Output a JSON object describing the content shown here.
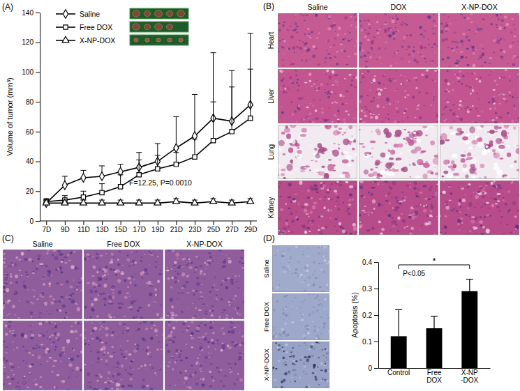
{
  "figure": {
    "panel_labels": [
      "(A)",
      "(B)",
      "(C)",
      "(D)"
    ],
    "organ_columns": [
      "Saline",
      "DOX",
      "X-NP-DOX"
    ],
    "organ_rows": [
      "Heart",
      "Liver",
      "Lung",
      "Kidney"
    ],
    "tumor_columns": [
      "Saline",
      "Free DOX",
      "X-NP-DOX"
    ],
    "apoptosis_rows": [
      "Saline",
      "Free DOX",
      "X-NP-DOX"
    ]
  },
  "chart_data": [
    {
      "type": "line",
      "y_label": "Volume of tumor  (mm³)",
      "categories": [
        "7D",
        "9D",
        "11D",
        "13D",
        "15D",
        "17D",
        "19D",
        "21D",
        "23D",
        "25D",
        "27D",
        "29D"
      ],
      "series": [
        {
          "name": "Saline",
          "color": "#000000",
          "marker": "diamond",
          "values": [
            12,
            24,
            29,
            30,
            33,
            36,
            40,
            49,
            57,
            69,
            67,
            78
          ],
          "errors": [
            2,
            6,
            5,
            7,
            5,
            10,
            12,
            21,
            28,
            44,
            34,
            48
          ]
        },
        {
          "name": "Free DOX",
          "color": "#000000",
          "marker": "square",
          "values": [
            13,
            14,
            16,
            19,
            23,
            31,
            35,
            38,
            43,
            54,
            60,
            69
          ],
          "errors": [
            2,
            3,
            4,
            6,
            8,
            10,
            9,
            8,
            12,
            26,
            30,
            33
          ]
        },
        {
          "name": "X-NP-DOX",
          "color": "#000000",
          "marker": "triangle",
          "values": [
            12,
            12,
            12,
            12,
            12,
            12,
            12,
            13,
            12,
            13,
            12,
            13
          ],
          "errors": [
            2,
            2,
            2,
            2,
            2,
            2,
            2,
            2,
            2,
            2,
            2,
            2
          ]
        }
      ],
      "ylim": [
        0,
        140
      ],
      "yticks": [
        0,
        20,
        40,
        60,
        80,
        100,
        120,
        140
      ],
      "legend": "top-left",
      "annotations": [
        "F=12.25, P=0.0010"
      ]
    },
    {
      "type": "bar",
      "y_label": "Apoptosis (%)",
      "categories": [
        "Control",
        "Free\nDOX",
        "X-NP\n-DOX"
      ],
      "values": [
        0.12,
        0.15,
        0.29
      ],
      "errors": [
        0.1,
        0.045,
        0.045
      ],
      "color": "#000000",
      "ylim": [
        0,
        0.4
      ],
      "yticks": [
        0,
        0.1,
        0.2,
        0.3,
        0.4
      ],
      "annotations": [
        "*",
        "P<0.05"
      ]
    }
  ]
}
